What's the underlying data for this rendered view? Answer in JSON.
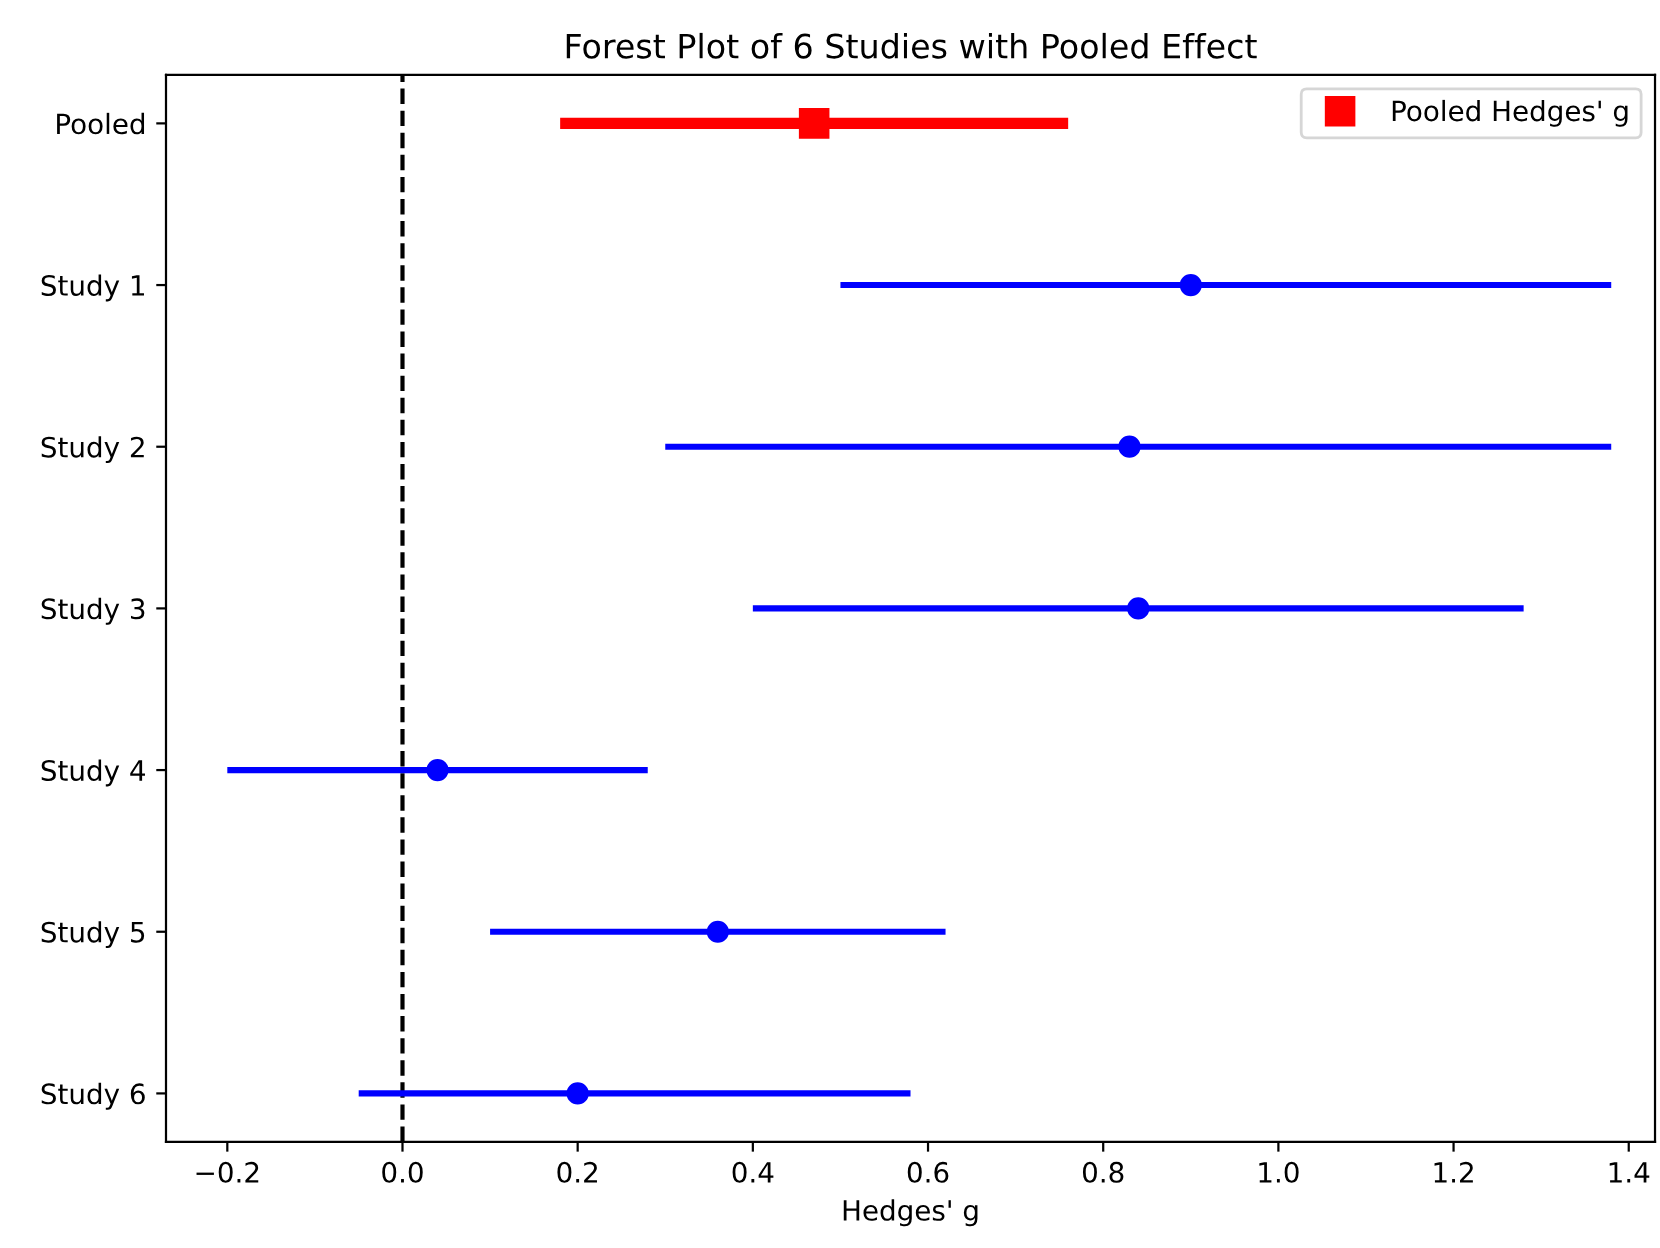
{
  "chart_data": {
    "type": "scatter",
    "orientation": "horizontal",
    "title": "Forest Plot of 6 Studies with Pooled Effect",
    "xlabel": "Hedges' g",
    "categories": [
      "Pooled",
      "Study 1",
      "Study 2",
      "Study 3",
      "Study 4",
      "Study 5",
      "Study 6"
    ],
    "series": [
      {
        "name": "Pooled Hedges' g",
        "color": "#ff0000",
        "marker": "square",
        "values": [
          0.47,
          null,
          null,
          null,
          null,
          null,
          null
        ],
        "errors": [
          [
            0.18,
            0.76
          ],
          null,
          null,
          null,
          null,
          null,
          null
        ]
      },
      {
        "color": "#0000ff",
        "marker": "circle",
        "values": [
          null,
          0.9,
          0.83,
          0.84,
          0.04,
          0.36,
          0.2
        ],
        "errors": [
          null,
          [
            0.5,
            1.38
          ],
          [
            0.3,
            1.38
          ],
          [
            0.4,
            1.28
          ],
          [
            -0.2,
            0.28
          ],
          [
            0.1,
            0.62
          ],
          [
            -0.05,
            0.58
          ]
        ]
      }
    ],
    "xlim": [
      -0.27,
      1.43
    ],
    "xticks": [
      {
        "value": -0.2,
        "label": "−0.2"
      },
      {
        "value": 0,
        "label": "0.0"
      },
      0.2,
      0.4,
      0.6,
      0.8,
      {
        "value": 1,
        "label": "1.0"
      },
      1.2,
      1.4
    ],
    "ref_lines": [
      {
        "axis": "x",
        "value": 0,
        "color": "#000000",
        "line_style": "dashed"
      }
    ],
    "grid": false,
    "legend": "top right"
  }
}
